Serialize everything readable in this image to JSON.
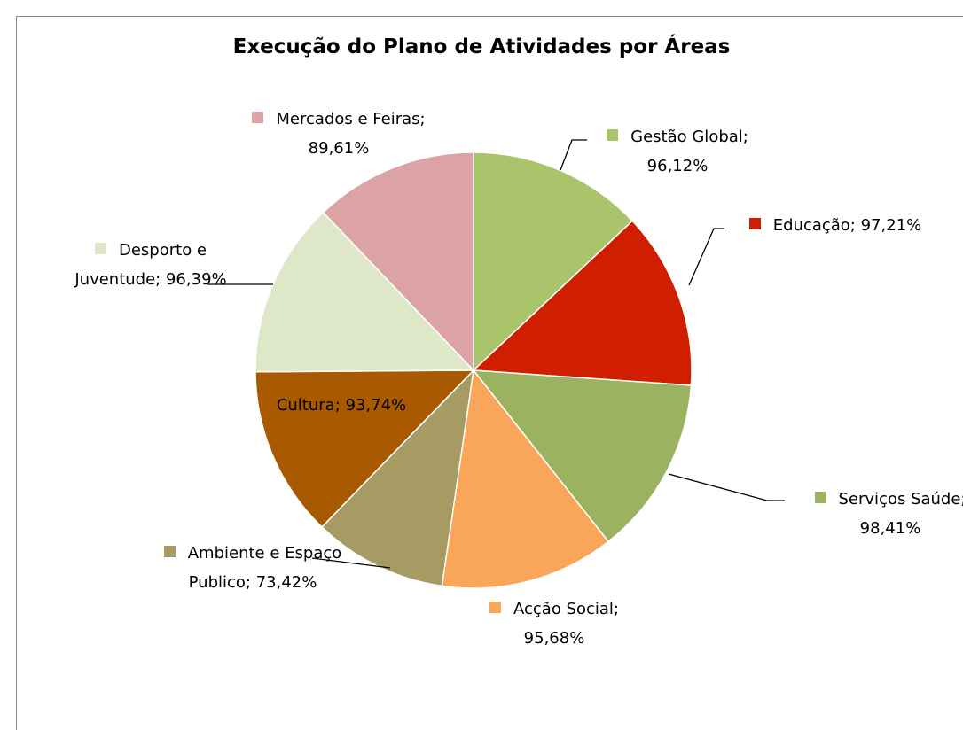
{
  "chart_data": {
    "type": "pie",
    "title": "Execução do Plano de Atividades por Áreas",
    "categories": [
      "Gestão Global;",
      "Educação;",
      "Serviços Saúde;",
      "Acção Social;",
      "Ambiente  e Espaço Publico;",
      "Cultura;",
      "Desporto e Juventude;",
      "Mercados e Feiras;"
    ],
    "values": [
      96.12,
      97.21,
      98.41,
      95.68,
      73.42,
      93.74,
      96.39,
      89.61
    ],
    "value_labels": [
      "96,12%",
      "97,21%",
      "98,41%",
      "95,68%",
      "73,42%",
      "93,74%",
      "96,39%",
      "89,61%"
    ],
    "colors": [
      "#a9c46b",
      "#d01f00",
      "#9bb261",
      "#f9a65a",
      "#a59b63",
      "#a95a00",
      "#dfe7c9",
      "#dba3a3"
    ]
  }
}
